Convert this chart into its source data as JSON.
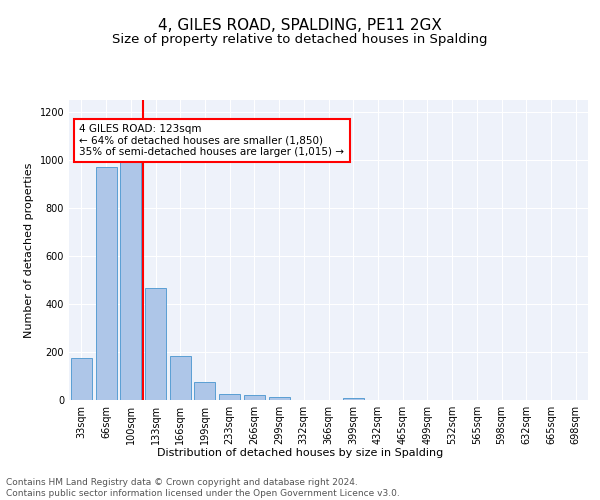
{
  "title1": "4, GILES ROAD, SPALDING, PE11 2GX",
  "title2": "Size of property relative to detached houses in Spalding",
  "xlabel": "Distribution of detached houses by size in Spalding",
  "ylabel": "Number of detached properties",
  "bar_labels": [
    "33sqm",
    "66sqm",
    "100sqm",
    "133sqm",
    "166sqm",
    "199sqm",
    "233sqm",
    "266sqm",
    "299sqm",
    "332sqm",
    "366sqm",
    "399sqm",
    "432sqm",
    "465sqm",
    "499sqm",
    "532sqm",
    "565sqm",
    "598sqm",
    "632sqm",
    "665sqm",
    "698sqm"
  ],
  "bar_values": [
    175,
    970,
    990,
    465,
    185,
    75,
    27,
    20,
    12,
    0,
    0,
    10,
    0,
    0,
    0,
    0,
    0,
    0,
    0,
    0,
    0
  ],
  "bar_color": "#aec6e8",
  "bar_edgecolor": "#5a9fd4",
  "vline_color": "red",
  "annotation_text": "4 GILES ROAD: 123sqm\n← 64% of detached houses are smaller (1,850)\n35% of semi-detached houses are larger (1,015) →",
  "annotation_box_edgecolor": "red",
  "annotation_box_facecolor": "white",
  "ylim": [
    0,
    1250
  ],
  "yticks": [
    0,
    200,
    400,
    600,
    800,
    1000,
    1200
  ],
  "footer_text": "Contains HM Land Registry data © Crown copyright and database right 2024.\nContains public sector information licensed under the Open Government Licence v3.0.",
  "background_color": "#eef2fa",
  "grid_color": "white",
  "title1_fontsize": 11,
  "title2_fontsize": 9.5,
  "axis_label_fontsize": 8,
  "tick_fontsize": 7,
  "footer_fontsize": 6.5,
  "annotation_fontsize": 7.5
}
